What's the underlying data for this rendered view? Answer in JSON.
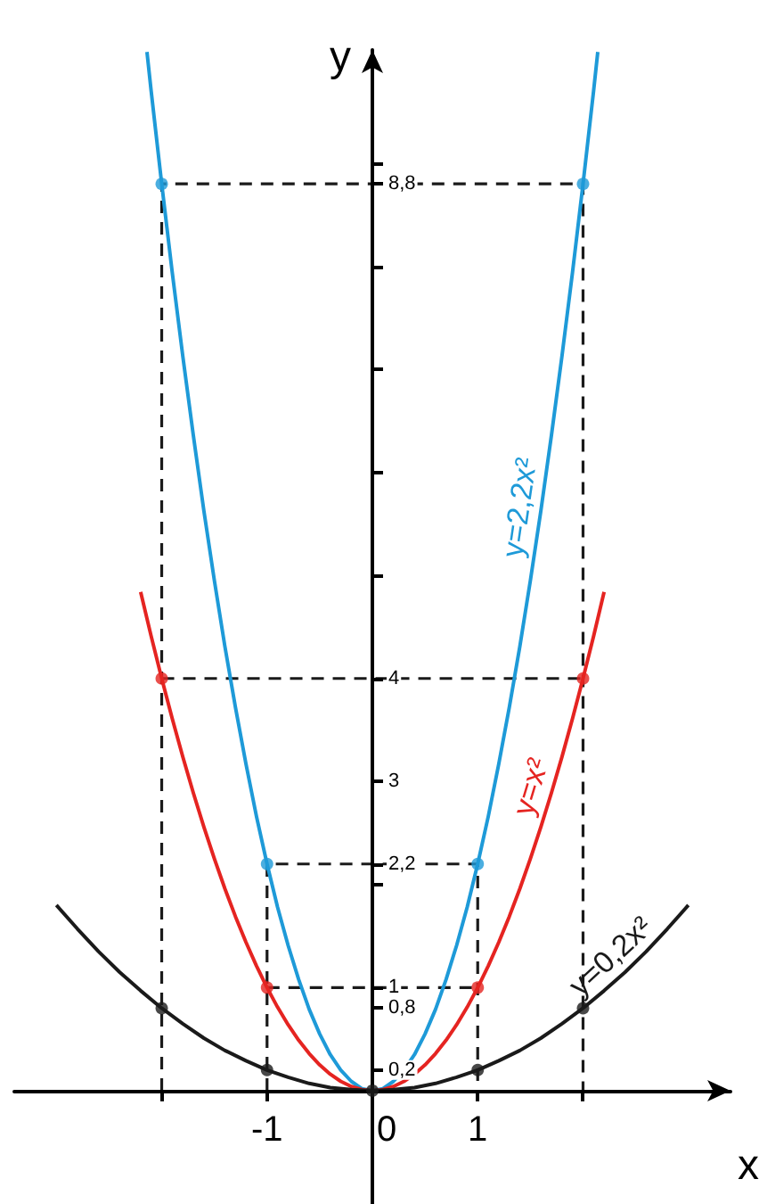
{
  "chart_data": {
    "type": "line",
    "xlabel": "x",
    "ylabel": "y",
    "marker": "none",
    "xlim": [
      -3.4,
      3.4
    ],
    "ylim": [
      -1.1,
      10.1
    ],
    "xticks": [
      {
        "value": -2,
        "label": null
      },
      -1,
      0,
      1,
      {
        "value": 2,
        "label": null
      }
    ],
    "yticks": [
      {
        "value": 0.2,
        "label": "0,2"
      },
      {
        "value": 0.8,
        "label": "0,8"
      },
      1,
      {
        "value": 2,
        "label": null
      },
      {
        "value": 2.2,
        "label": "2,2"
      },
      3,
      4,
      {
        "value": 5,
        "label": null
      },
      {
        "value": 6,
        "label": null
      },
      {
        "value": 7,
        "label": null
      },
      {
        "value": 8,
        "label": null
      },
      {
        "value": 8.8,
        "label": "8,8"
      },
      {
        "value": 9,
        "label": null
      }
    ],
    "series": [
      {
        "type": "line",
        "color": "#1a1a1a",
        "line_style": "dashed",
        "x": [
          -2,
          -2,
          2,
          2
        ],
        "values": [
          0,
          8.8,
          8.8,
          0
        ]
      },
      {
        "type": "line",
        "color": "#1a1a1a",
        "line_style": "dashed",
        "x": [
          -2,
          2
        ],
        "values": [
          4,
          4
        ]
      },
      {
        "type": "line",
        "color": "#1a1a1a",
        "line_style": "dashed",
        "x": [
          -1,
          -1,
          1,
          1
        ],
        "values": [
          0,
          2.2,
          2.2,
          0
        ]
      },
      {
        "type": "line",
        "color": "#1a1a1a",
        "line_style": "dashed",
        "x": [
          -1,
          1
        ],
        "values": [
          1,
          1
        ]
      },
      {
        "type": "line",
        "name": "y=2,2x²",
        "color": "#1e9ad8",
        "x": [
          -2.14,
          -2.1,
          -2,
          -1.9,
          -1.8,
          -1.7,
          -1.6,
          -1.5,
          -1.4,
          -1.3,
          -1.2,
          -1.1,
          -1,
          -0.9,
          -0.8,
          -0.7,
          -0.6,
          -0.5,
          -0.4,
          -0.3,
          -0.2,
          -0.1,
          0,
          0.1,
          0.2,
          0.3,
          0.4,
          0.5,
          0.6,
          0.7,
          0.8,
          0.9,
          1,
          1.1,
          1.2,
          1.3,
          1.4,
          1.5,
          1.6,
          1.7,
          1.8,
          1.9,
          2,
          2.1,
          2.14
        ],
        "values": [
          10.08,
          9.7,
          8.8,
          7.94,
          7.13,
          6.36,
          5.63,
          4.95,
          4.31,
          3.72,
          3.17,
          2.66,
          2.2,
          1.78,
          1.41,
          1.08,
          0.79,
          0.55,
          0.35,
          0.2,
          0.09,
          0.02,
          0,
          0.02,
          0.09,
          0.2,
          0.35,
          0.55,
          0.79,
          1.08,
          1.41,
          1.78,
          2.2,
          2.66,
          3.17,
          3.72,
          4.31,
          4.95,
          5.63,
          6.36,
          7.13,
          7.94,
          8.8,
          9.7,
          10.08
        ]
      },
      {
        "type": "line",
        "name": "y=x²",
        "color": "#e52421",
        "x": [
          -2.2,
          -2.1,
          -2,
          -1.9,
          -1.8,
          -1.7,
          -1.6,
          -1.5,
          -1.4,
          -1.3,
          -1.2,
          -1.1,
          -1,
          -0.9,
          -0.8,
          -0.7,
          -0.6,
          -0.5,
          -0.4,
          -0.3,
          -0.2,
          -0.1,
          0,
          0.1,
          0.2,
          0.3,
          0.4,
          0.5,
          0.6,
          0.7,
          0.8,
          0.9,
          1,
          1.1,
          1.2,
          1.3,
          1.4,
          1.5,
          1.6,
          1.7,
          1.8,
          1.9,
          2,
          2.1,
          2.2
        ],
        "values": [
          4.84,
          4.41,
          4,
          3.61,
          3.24,
          2.89,
          2.56,
          2.25,
          1.96,
          1.69,
          1.44,
          1.21,
          1,
          0.81,
          0.64,
          0.49,
          0.36,
          0.25,
          0.16,
          0.09,
          0.04,
          0.01,
          0,
          0.01,
          0.04,
          0.09,
          0.16,
          0.25,
          0.36,
          0.49,
          0.64,
          0.81,
          1,
          1.21,
          1.44,
          1.69,
          1.96,
          2.25,
          2.56,
          2.89,
          3.24,
          3.61,
          4,
          4.41,
          4.84
        ]
      },
      {
        "type": "line",
        "name": "y=0,2x²",
        "color": "#1a1a1a",
        "x": [
          -3,
          -2.8,
          -2.6,
          -2.4,
          -2.2,
          -2,
          -1.8,
          -1.6,
          -1.4,
          -1.2,
          -1,
          -0.8,
          -0.6,
          -0.4,
          -0.2,
          0,
          0.2,
          0.4,
          0.6,
          0.8,
          1,
          1.2,
          1.4,
          1.6,
          1.8,
          2,
          2.2,
          2.4,
          2.6,
          2.8,
          3
        ],
        "values": [
          1.8,
          1.57,
          1.35,
          1.15,
          0.97,
          0.8,
          0.65,
          0.51,
          0.39,
          0.29,
          0.2,
          0.13,
          0.07,
          0.03,
          0.01,
          0,
          0.01,
          0.03,
          0.07,
          0.13,
          0.2,
          0.29,
          0.39,
          0.51,
          0.65,
          0.8,
          0.97,
          1.15,
          1.35,
          1.57,
          1.8
        ]
      },
      {
        "type": "scatter",
        "marker": "circle",
        "color": "#1e9ad8",
        "x": [
          -2,
          -1,
          1,
          2
        ],
        "values": [
          8.8,
          2.2,
          2.2,
          8.8
        ]
      },
      {
        "type": "scatter",
        "marker": "circle",
        "color": "#e52421",
        "x": [
          -2,
          -1,
          1,
          2
        ],
        "values": [
          4,
          1,
          1,
          4
        ]
      },
      {
        "type": "scatter",
        "marker": "circle",
        "color": "#1a1a1a",
        "x": [
          -2,
          -1,
          0,
          1,
          2
        ],
        "values": [
          0.8,
          0.2,
          0,
          0.2,
          0.8
        ]
      }
    ]
  }
}
